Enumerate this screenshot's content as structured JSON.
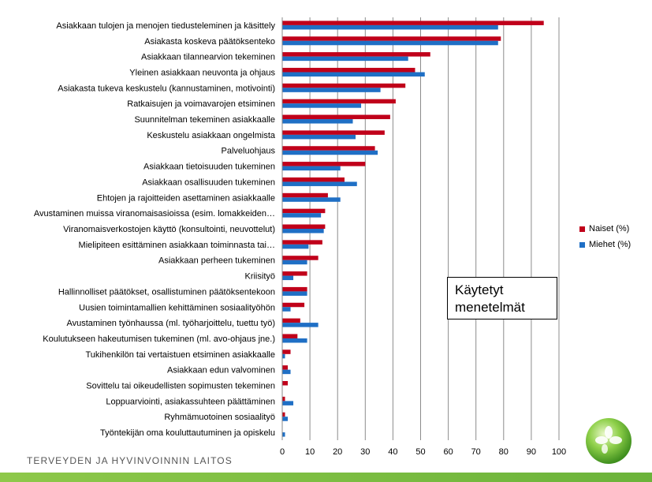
{
  "chart_data": {
    "type": "bar",
    "orientation": "horizontal",
    "title": "Käytetyt menetelmät",
    "xlim": [
      0,
      100
    ],
    "xticks": [
      0,
      10,
      20,
      30,
      40,
      50,
      60,
      70,
      80,
      90,
      100
    ],
    "grid": true,
    "legend_position": "right",
    "categories": [
      "Asiakkaan tulojen ja menojen tiedusteleminen ja käsittely",
      "Asiakasta koskeva päätöksenteko",
      "Asiakkaan tilannearvion tekeminen",
      "Yleinen asiakkaan neuvonta ja ohjaus",
      "Asiakasta tukeva keskustelu (kannustaminen, motivointi)",
      "Ratkaisujen ja voimavarojen etsiminen",
      "Suunnitelman tekeminen asiakkaalle",
      "Keskustelu asiakkaan ongelmista",
      "Palveluohjaus",
      "Asiakkaan tietoisuuden tukeminen",
      "Asiakkaan osallisuuden tukeminen",
      "Ehtojen ja rajoitteiden asettaminen asiakkaalle",
      "Avustaminen muissa viranomaisasioissa (esim. lomakkeiden…",
      "Viranomaisverkostojen käyttö (konsultointi, neuvottelut)",
      "Mielipiteen esittäminen asiakkaan toiminnasta tai…",
      "Asiakkaan perheen tukeminen",
      "Kriisityö",
      "Hallinnolliset päätökset, osallistuminen päätöksentekoon",
      "Uusien toimintamallien kehittäminen sosiaalityöhön",
      "Avustaminen työnhaussa (ml. työharjoittelu, tuettu työ)",
      "Koulutukseen hakeutumisen tukeminen (ml. avo-ohjaus jne.)",
      "Tukihenkilön tai vertaistuen etsiminen asiakkaalle",
      "Asiakkaan edun valvominen",
      "Sovittelu tai oikeudellisten sopimusten tekeminen",
      "Loppuarviointi, asiakassuhteen päättäminen",
      "Ryhmämuotoinen sosiaalityö",
      "Työntekijän oma kouluttautuminen ja opiskelu"
    ],
    "series": [
      {
        "name": "Naiset (%)",
        "color": "#c0001a",
        "values": [
          94.5,
          79,
          53.5,
          48,
          44.5,
          41,
          39,
          37,
          33.5,
          30,
          22.5,
          16.5,
          15.5,
          15.5,
          14.5,
          13,
          9,
          9,
          8,
          6.5,
          5.5,
          3,
          2,
          2,
          1,
          1,
          0
        ]
      },
      {
        "name": "Miehet (%)",
        "color": "#1f6fc5",
        "values": [
          78,
          78,
          45.5,
          51.5,
          35.5,
          28.5,
          25.5,
          26.5,
          34.5,
          21,
          27,
          21,
          14,
          15,
          9.5,
          9,
          4,
          9,
          3,
          13,
          9,
          1,
          3,
          0,
          4,
          2,
          1
        ]
      }
    ]
  },
  "legend": {
    "items": [
      {
        "label": "Naiset (%)",
        "color": "#c0001a"
      },
      {
        "label": "Miehet (%)",
        "color": "#1f6fc5"
      }
    ]
  },
  "title_box": {
    "line1": "Käytetyt",
    "line2": "menetelmät"
  },
  "footer": {
    "org_name": "TERVEYDEN JA HYVINVOINNIN LAITOS"
  }
}
